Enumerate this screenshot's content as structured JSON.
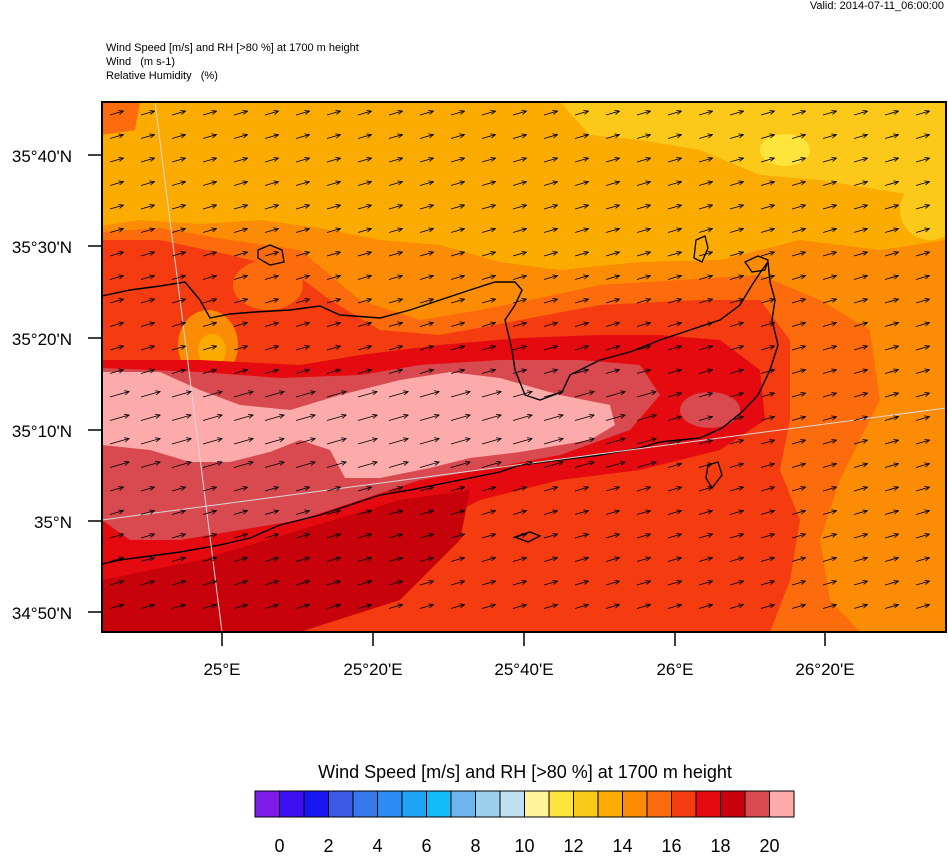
{
  "header": {
    "valid": "Valid: 2014-07-11_06:00:00",
    "title_lines": [
      "Wind Speed [m/s] and RH [>80 %] at 1700 m height",
      "Wind   (m s-1)",
      "Relative Humidity   (%)"
    ]
  },
  "map": {
    "lat_labels": [
      "35°40'N",
      "35°30'N",
      "35°20'N",
      "35°10'N",
      "35°N",
      "34°50'N"
    ],
    "lon_labels": [
      "25°E",
      "25°20'E",
      "25°40'E",
      "26°E",
      "26°20'E"
    ],
    "wind_direction": "east-northeast"
  },
  "colorbar": {
    "title": "Wind Speed [m/s] and RH [>80 %] at 1700 m height",
    "colors": [
      "#7d1ce8",
      "#3a10f0",
      "#1616f0",
      "#3a5ae6",
      "#3878ee",
      "#2c8cf2",
      "#1ea4f4",
      "#12bcf8",
      "#6cb6ec",
      "#9ccfec",
      "#c0e0f2",
      "#fff49a",
      "#ffe43c",
      "#fcc81a",
      "#fcac00",
      "#fc8c04",
      "#fc6c0c",
      "#f43c10",
      "#e40a10",
      "#c8020a",
      "#d84a50",
      "#fcaaaa"
    ],
    "tick_labels": [
      "0",
      "2",
      "4",
      "6",
      "8",
      "10",
      "12",
      "14",
      "16",
      "18",
      "20"
    ]
  }
}
